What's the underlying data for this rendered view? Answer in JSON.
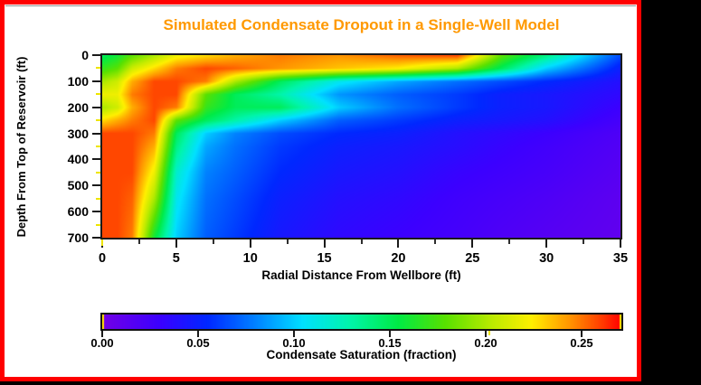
{
  "title": "Simulated Condensate Dropout in a Single-Well Model",
  "y_axis": {
    "label": "Depth From Top of Reservoir (ft)",
    "ticks": [
      "0",
      "100",
      "200",
      "300",
      "400",
      "500",
      "600",
      "700"
    ]
  },
  "x_axis": {
    "label": "Radial Distance From Wellbore (ft)",
    "ticks": [
      "0",
      "5",
      "10",
      "15",
      "20",
      "25",
      "30",
      "35"
    ]
  },
  "colorbar": {
    "label": "Condensate Saturation (fraction)",
    "ticks": [
      "0.00",
      "0.05",
      "0.10",
      "0.15",
      "0.20",
      "0.25"
    ]
  },
  "colors": {
    "frame_border": "#ff0000",
    "background": "#000000",
    "page": "#ffffff",
    "title_text": "#ff9900",
    "axis_ink": "#1a1a1a",
    "minor_tick_yellow": "#ede400",
    "colorbar_end_cap_yellow": "#ffe000"
  },
  "chart_data": {
    "type": "heatmap",
    "title": "Simulated Condensate Dropout in a Single-Well Model",
    "xlabel": "Radial Distance From Wellbore (ft)",
    "ylabel": "Depth From Top of Reservoir (ft)",
    "x": [
      0,
      1,
      2,
      3.5,
      5,
      7,
      9,
      12,
      16,
      20,
      24,
      27,
      30,
      35
    ],
    "y": [
      0,
      50,
      100,
      150,
      200,
      250,
      300,
      350,
      450,
      550,
      700
    ],
    "values": [
      [
        0.15,
        0.16,
        0.18,
        0.2,
        0.22,
        0.23,
        0.24,
        0.25,
        0.245,
        0.255,
        0.26,
        0.18,
        0.14,
        0.065
      ],
      [
        0.17,
        0.18,
        0.21,
        0.23,
        0.25,
        0.26,
        0.255,
        0.245,
        0.235,
        0.225,
        0.2,
        0.15,
        0.1,
        0.05
      ],
      [
        0.2,
        0.21,
        0.24,
        0.26,
        0.26,
        0.25,
        0.2,
        0.15,
        0.11,
        0.09,
        0.075,
        0.065,
        0.055,
        0.04
      ],
      [
        0.22,
        0.22,
        0.25,
        0.26,
        0.26,
        0.18,
        0.15,
        0.13,
        0.085,
        0.07,
        0.06,
        0.05,
        0.045,
        0.035
      ],
      [
        0.2,
        0.21,
        0.24,
        0.26,
        0.25,
        0.17,
        0.15,
        0.15,
        0.1,
        0.075,
        0.06,
        0.05,
        0.045,
        0.03
      ],
      [
        0.23,
        0.24,
        0.25,
        0.26,
        0.18,
        0.15,
        0.13,
        0.1,
        0.07,
        0.06,
        0.05,
        0.045,
        0.04,
        0.025
      ],
      [
        0.26,
        0.26,
        0.26,
        0.25,
        0.15,
        0.1,
        0.08,
        0.065,
        0.055,
        0.05,
        0.04,
        0.035,
        0.03,
        0.02
      ],
      [
        0.26,
        0.26,
        0.26,
        0.24,
        0.14,
        0.09,
        0.075,
        0.06,
        0.05,
        0.045,
        0.038,
        0.032,
        0.027,
        0.018
      ],
      [
        0.26,
        0.26,
        0.26,
        0.22,
        0.12,
        0.08,
        0.07,
        0.055,
        0.045,
        0.04,
        0.032,
        0.028,
        0.024,
        0.015
      ],
      [
        0.26,
        0.26,
        0.255,
        0.2,
        0.11,
        0.075,
        0.065,
        0.05,
        0.04,
        0.035,
        0.028,
        0.024,
        0.02,
        0.012
      ],
      [
        0.26,
        0.26,
        0.25,
        0.16,
        0.1,
        0.07,
        0.06,
        0.045,
        0.035,
        0.03,
        0.025,
        0.02,
        0.016,
        0.01
      ]
    ],
    "vmin": 0.0,
    "vmax": 0.272,
    "xlim": [
      0,
      35
    ],
    "ylim": [
      700,
      0
    ],
    "x_major_tick_step": 5,
    "x_minor_tick_step": 2.5,
    "y_major_tick_step": 100,
    "y_minor_tick_step": 50,
    "colorbar_label": "Condensate Saturation (fraction)",
    "colorbar_tick_values": [
      0.0,
      0.05,
      0.1,
      0.15,
      0.2,
      0.25
    ],
    "legend_position": "bottom-colorbar",
    "grid": "off",
    "colormap_stops": [
      [
        0.0,
        "#7300e6"
      ],
      [
        0.03,
        "#3c00ff"
      ],
      [
        0.055,
        "#0028ff"
      ],
      [
        0.08,
        "#0082ff"
      ],
      [
        0.105,
        "#00e1ff"
      ],
      [
        0.13,
        "#00f5aa"
      ],
      [
        0.155,
        "#00eb46"
      ],
      [
        0.18,
        "#5ae100"
      ],
      [
        0.205,
        "#beeb00"
      ],
      [
        0.225,
        "#fff000"
      ],
      [
        0.245,
        "#ff9600"
      ],
      [
        0.262,
        "#ff3c00"
      ],
      [
        0.272,
        "#ff0000"
      ]
    ]
  }
}
